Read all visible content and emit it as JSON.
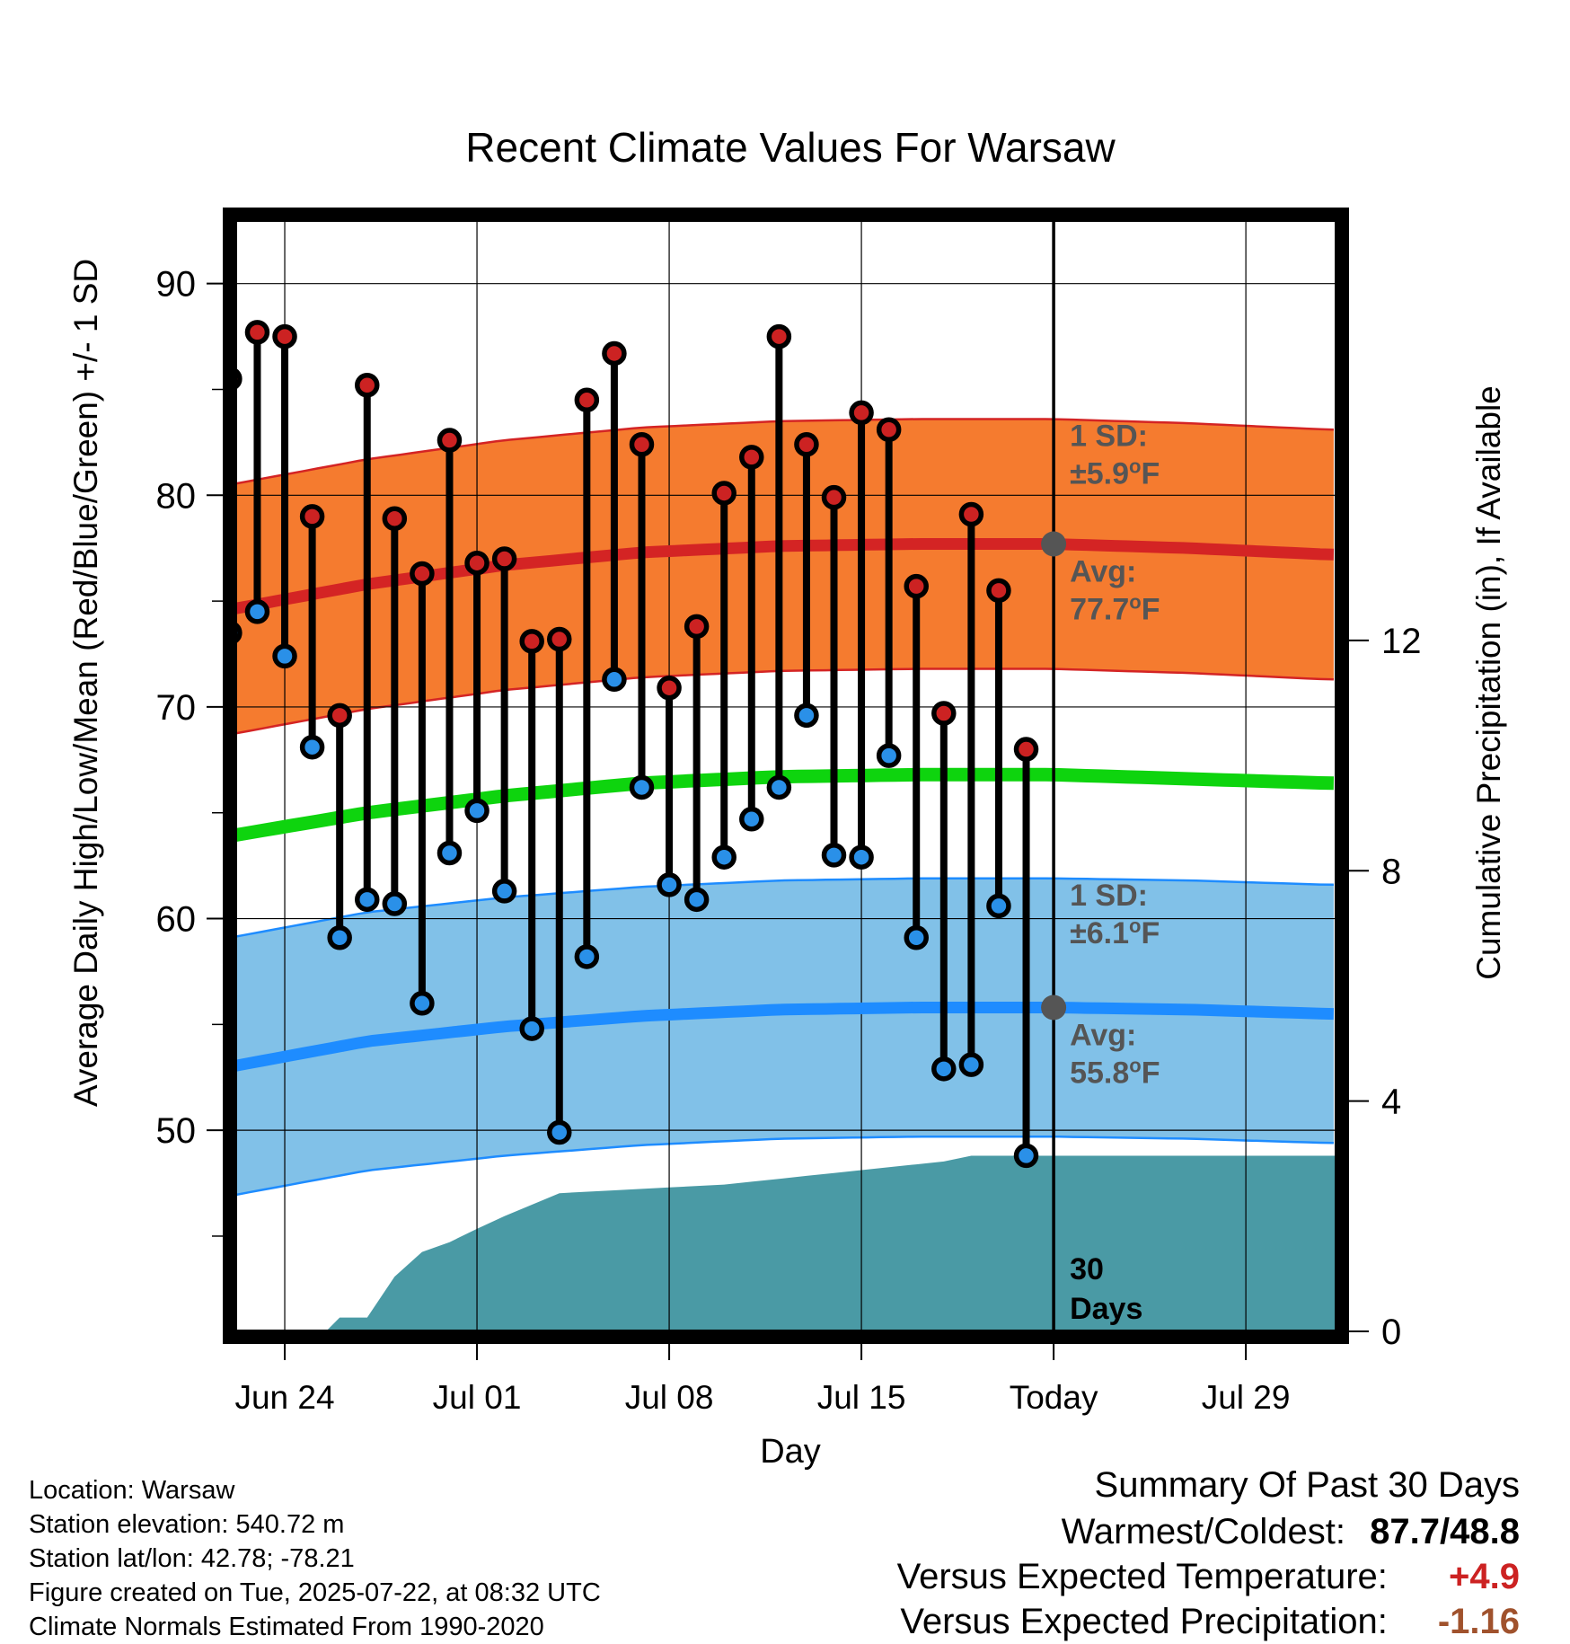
{
  "chart_data": {
    "type": "line",
    "title": "Recent Climate Values For Warsaw",
    "xlabel": "Day",
    "ylabel": "Average Daily High/Low/Mean (Red/Blue/Green) +/- 1 SD",
    "y2label": "Cumulative Precipitation (in), If Available",
    "ylim": [
      40.5,
      93
    ],
    "y2lim": [
      0,
      19.3
    ],
    "xlim_days": [
      -29.8,
      10.3
    ],
    "yticks": [
      "50",
      "60",
      "70",
      "80",
      "90"
    ],
    "y2ticks": [
      "0",
      "4",
      "8",
      "12"
    ],
    "xticks": [
      "Jun 24",
      "Jul 01",
      "Jul 08",
      "Jul 15",
      "Today",
      "Jul 29"
    ],
    "xtick_days": [
      -28,
      -21,
      -14,
      -7,
      0,
      7
    ],
    "grid": true,
    "days": [
      -30,
      -29,
      -28,
      -27,
      -26,
      -25,
      -24,
      -23,
      -22,
      -21,
      -20,
      -19,
      -18,
      -17,
      -16,
      -15,
      -14,
      -13,
      -12,
      -11,
      -10,
      -9,
      -8,
      -7,
      -6,
      -5,
      -4,
      -3,
      -2,
      -1
    ],
    "highs": [
      85.5,
      87.7,
      87.5,
      79.0,
      69.6,
      85.2,
      78.9,
      76.3,
      82.6,
      76.8,
      77.0,
      73.1,
      73.2,
      84.5,
      86.7,
      82.4,
      70.9,
      73.8,
      80.1,
      81.8,
      87.5,
      82.4,
      79.9,
      83.9,
      83.1,
      75.7,
      69.7,
      79.1,
      75.5,
      68.0
    ],
    "lows": [
      73.5,
      74.5,
      72.4,
      68.1,
      59.1,
      60.9,
      60.7,
      56.0,
      63.1,
      65.1,
      61.3,
      54.8,
      49.9,
      58.2,
      71.3,
      66.2,
      61.6,
      60.9,
      62.9,
      64.7,
      66.2,
      69.6,
      63.0,
      62.9,
      67.7,
      59.1,
      52.9,
      53.1,
      60.6,
      48.8
    ],
    "normal_high": {
      "days": [
        -30,
        -25,
        -20,
        -15,
        -10,
        -5,
        0,
        5,
        10
      ],
      "values": [
        74.6,
        75.8,
        76.7,
        77.3,
        77.6,
        77.7,
        77.7,
        77.5,
        77.2
      ],
      "sd": 5.9
    },
    "normal_mean": {
      "days": [
        -30,
        -25,
        -20,
        -15,
        -10,
        -5,
        0,
        5,
        10
      ],
      "values": [
        63.9,
        65.0,
        65.8,
        66.4,
        66.7,
        66.8,
        66.8,
        66.6,
        66.4
      ]
    },
    "normal_low": {
      "days": [
        -30,
        -25,
        -20,
        -15,
        -10,
        -5,
        0,
        5,
        10
      ],
      "values": [
        53.0,
        54.2,
        54.9,
        55.4,
        55.7,
        55.8,
        55.8,
        55.7,
        55.5
      ],
      "sd": 6.1
    },
    "precip_cumulative": {
      "days": [
        -30,
        -26.5,
        -26,
        -25,
        -24,
        -23,
        -22,
        -21,
        -20,
        -19,
        -18,
        -16,
        -14,
        -12,
        -11,
        -10,
        -9,
        -8,
        -7,
        -6,
        -5,
        -4,
        -3,
        10.3
      ],
      "values": [
        0,
        0,
        0.24,
        0.24,
        0.95,
        1.38,
        1.55,
        1.78,
        2.0,
        2.2,
        2.4,
        2.45,
        2.5,
        2.55,
        2.6,
        2.65,
        2.7,
        2.75,
        2.8,
        2.85,
        2.9,
        2.95,
        3.05,
        3.05
      ]
    },
    "annotations": {
      "high_sd": "1 SD:",
      "high_sd_value": "±5.9",
      "high_avg": "Avg:",
      "high_avg_value": "77.7",
      "low_sd": "1 SD:",
      "low_sd_value": "±6.1",
      "low_avg": "Avg:",
      "low_avg_value": "55.8",
      "unit_sup": "o",
      "unit": "F",
      "period_number": "30",
      "period_unit": "Days"
    },
    "colors": {
      "high_band": "#f57b2f",
      "high_line": "#d42424",
      "mean_line": "#0ed40e",
      "low_band": "#81c1e8",
      "low_line": "#1e8cff",
      "precip": "#4a9aa5",
      "annotation": "#555555",
      "high_dot": "#cc2222",
      "low_dot": "#2a90e8"
    }
  },
  "info": {
    "location": "Location: Warsaw",
    "elevation": "Station elevation: 540.72 m",
    "latlon": "Station lat/lon: 42.78; -78.21",
    "created": "Figure created on Tue, 2025-07-22, at 08:32 UTC",
    "normals": "Climate Normals Estimated From 1990-2020"
  },
  "summary": {
    "heading": "Summary Of Past 30 Days",
    "warm_cold_label": "Warmest/Coldest:",
    "warm_value": "87.7",
    "separator": "/",
    "cold_value": "48.8",
    "temp_label": "Versus Expected Temperature:",
    "temp_value": "+4.9",
    "temp_color": "#cc2222",
    "precip_label": "Versus Expected Precipitation:",
    "precip_value": "-1.16",
    "precip_color": "#a0522d"
  }
}
